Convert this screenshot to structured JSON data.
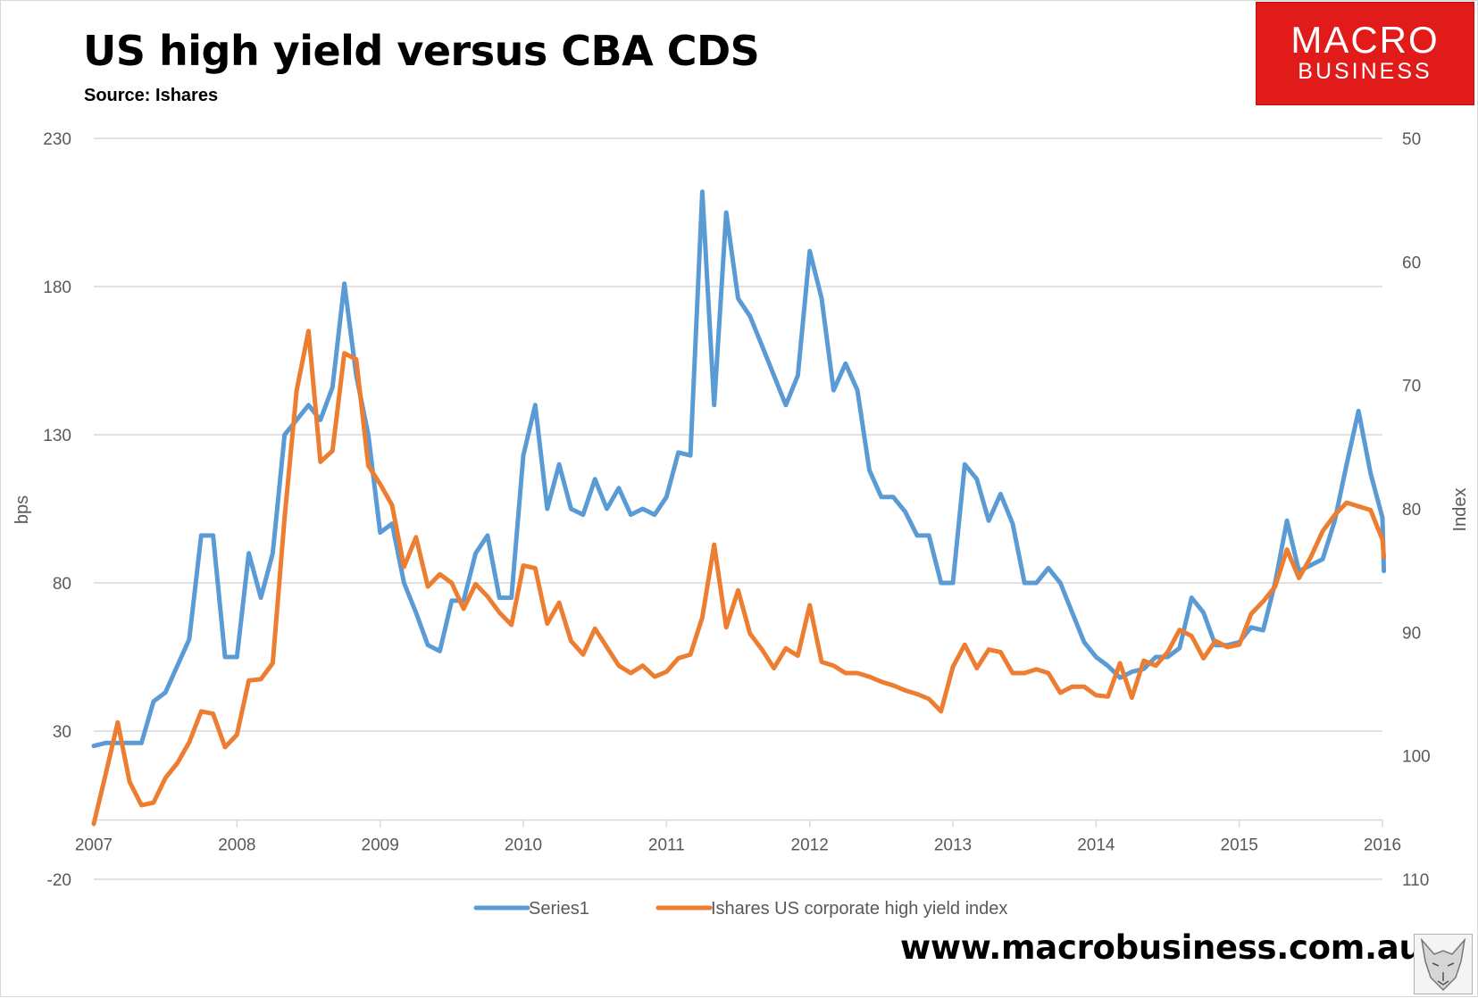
{
  "header": {
    "title": "US high yield versus CBA CDS",
    "subtitle": "Source: Ishares"
  },
  "logo": {
    "line1": "MACRO",
    "line2": "BUSINESS",
    "color": "#e11a1a"
  },
  "footer": {
    "url": "www.macrobusiness.com.au"
  },
  "colors": {
    "series1": "#5b9bd5",
    "series2": "#ed7d31",
    "grid": "#d9d9d9",
    "axis_text": "#595959"
  },
  "chart_data": {
    "type": "line",
    "title": "US high yield versus CBA CDS",
    "ylabel_left": "bps",
    "ylabel_right": "Index",
    "xlim": [
      2007,
      2016
    ],
    "x_ticks": [
      "2007",
      "2008",
      "2009",
      "2010",
      "2011",
      "2012",
      "2013",
      "2014",
      "2015",
      "2016"
    ],
    "ylim_left": [
      -20,
      230
    ],
    "y_ticks_left": [
      "230",
      "180",
      "130",
      "80",
      "30",
      "-20"
    ],
    "ylim_right": [
      50,
      110
    ],
    "right_axis_inverted": true,
    "y_ticks_right": [
      "50",
      "60",
      "70",
      "80",
      "90",
      "100",
      "110"
    ],
    "legend_position": "bottom",
    "series": [
      {
        "name": "Series1",
        "axis": "left",
        "x": [
          2007.0,
          2007.083,
          2007.167,
          2007.25,
          2007.333,
          2007.417,
          2007.5,
          2007.583,
          2007.667,
          2007.75,
          2007.833,
          2007.917,
          2008.0,
          2008.083,
          2008.167,
          2008.25,
          2008.333,
          2008.417,
          2008.5,
          2008.583,
          2008.667,
          2008.75,
          2008.833,
          2008.917,
          2009.0,
          2009.083,
          2009.167,
          2009.25,
          2009.333,
          2009.417,
          2009.5,
          2009.583,
          2009.667,
          2009.75,
          2009.833,
          2009.917,
          2010.0,
          2010.083,
          2010.167,
          2010.25,
          2010.333,
          2010.417,
          2010.5,
          2010.583,
          2010.667,
          2010.75,
          2010.833,
          2010.917,
          2011.0,
          2011.083,
          2011.167,
          2011.25,
          2011.333,
          2011.417,
          2011.5,
          2011.583,
          2011.667,
          2011.75,
          2011.833,
          2011.917,
          2012.0,
          2012.083,
          2012.167,
          2012.25,
          2012.333,
          2012.417,
          2012.5,
          2012.583,
          2012.667,
          2012.75,
          2012.833,
          2012.917,
          2013.0,
          2013.083,
          2013.167,
          2013.25,
          2013.333,
          2013.417,
          2013.5,
          2013.583,
          2013.667,
          2013.75,
          2013.833,
          2013.917,
          2014.0,
          2014.083,
          2014.167,
          2014.25,
          2014.333,
          2014.417,
          2014.5,
          2014.583,
          2014.667,
          2014.75,
          2014.833,
          2014.917,
          2015.0,
          2015.083,
          2015.167,
          2015.25,
          2015.333,
          2015.417,
          2015.5,
          2015.583,
          2015.667,
          2015.75,
          2015.833,
          2015.917,
          2016.0,
          2016.01
        ],
        "values": [
          25,
          26,
          26,
          26,
          26,
          40,
          43,
          52,
          61,
          96,
          96,
          55,
          55,
          90,
          75,
          90,
          130,
          135,
          140,
          135,
          146,
          181,
          150,
          130,
          97,
          100,
          80,
          70,
          59,
          57,
          74,
          74,
          90,
          96,
          75,
          75,
          123,
          140,
          105,
          120,
          105,
          103,
          115,
          105,
          112,
          103,
          105,
          103,
          109,
          124,
          123,
          212,
          140,
          205,
          176,
          170,
          160,
          150,
          140,
          150,
          192,
          176,
          145,
          154,
          145,
          118,
          109,
          109,
          104,
          96,
          96,
          80,
          80,
          120,
          115,
          101,
          110,
          100,
          80,
          80,
          85,
          80,
          70,
          60,
          55,
          52,
          48,
          50,
          51,
          55,
          55,
          58,
          75,
          70,
          59,
          59,
          60,
          65,
          64,
          80,
          101,
          84,
          86,
          88,
          101,
          120,
          138,
          117,
          102,
          84
        ]
      },
      {
        "name": "Ishares US corporate high yield index",
        "axis": "right",
        "x": [
          2007.0,
          2007.083,
          2007.167,
          2007.25,
          2007.333,
          2007.417,
          2007.5,
          2007.583,
          2007.667,
          2007.75,
          2007.833,
          2007.917,
          2008.0,
          2008.083,
          2008.167,
          2008.25,
          2008.333,
          2008.417,
          2008.5,
          2008.583,
          2008.667,
          2008.75,
          2008.833,
          2008.917,
          2009.0,
          2009.083,
          2009.167,
          2009.25,
          2009.333,
          2009.417,
          2009.5,
          2009.583,
          2009.667,
          2009.75,
          2009.833,
          2009.917,
          2010.0,
          2010.083,
          2010.167,
          2010.25,
          2010.333,
          2010.417,
          2010.5,
          2010.583,
          2010.667,
          2010.75,
          2010.833,
          2010.917,
          2011.0,
          2011.083,
          2011.167,
          2011.25,
          2011.333,
          2011.417,
          2011.5,
          2011.583,
          2011.667,
          2011.75,
          2011.833,
          2011.917,
          2012.0,
          2012.083,
          2012.167,
          2012.25,
          2012.333,
          2012.417,
          2012.5,
          2012.583,
          2012.667,
          2012.75,
          2012.833,
          2012.917,
          2013.0,
          2013.083,
          2013.167,
          2013.25,
          2013.333,
          2013.417,
          2013.5,
          2013.583,
          2013.667,
          2013.75,
          2013.833,
          2013.917,
          2014.0,
          2014.083,
          2014.167,
          2014.25,
          2014.333,
          2014.417,
          2014.5,
          2014.583,
          2014.667,
          2014.75,
          2014.833,
          2014.917,
          2015.0,
          2015.083,
          2015.167,
          2015.25,
          2015.333,
          2015.417,
          2015.5,
          2015.583,
          2015.667,
          2015.75,
          2015.833,
          2015.917,
          2016.0,
          2016.01
        ],
        "values": [
          105.5,
          101.5,
          97.3,
          102.1,
          104.0,
          103.8,
          101.8,
          100.6,
          98.9,
          96.4,
          96.6,
          99.3,
          98.3,
          93.9,
          93.8,
          92.5,
          80.7,
          70.4,
          65.6,
          76.2,
          75.3,
          67.4,
          67.9,
          76.5,
          78.0,
          79.7,
          84.7,
          82.3,
          86.3,
          85.3,
          86.0,
          88.1,
          86.1,
          87.1,
          88.4,
          89.4,
          84.6,
          84.8,
          89.3,
          87.6,
          90.7,
          91.8,
          89.7,
          91.2,
          92.7,
          93.3,
          92.7,
          93.6,
          93.2,
          92.1,
          91.8,
          88.8,
          82.9,
          89.6,
          86.6,
          90.1,
          91.4,
          92.9,
          91.3,
          91.9,
          87.8,
          92.4,
          92.7,
          93.3,
          93.3,
          93.6,
          94.0,
          94.3,
          94.7,
          95.0,
          95.4,
          96.4,
          92.8,
          91.0,
          92.9,
          91.4,
          91.6,
          93.3,
          93.3,
          93.0,
          93.3,
          94.9,
          94.4,
          94.4,
          95.1,
          95.2,
          92.5,
          95.3,
          92.3,
          92.7,
          91.6,
          89.8,
          90.3,
          92.1,
          90.7,
          91.2,
          91.0,
          88.5,
          87.5,
          86.3,
          83.3,
          85.6,
          83.9,
          81.8,
          80.5,
          79.5,
          79.8,
          80.1,
          82.5,
          83.9
        ]
      }
    ]
  }
}
